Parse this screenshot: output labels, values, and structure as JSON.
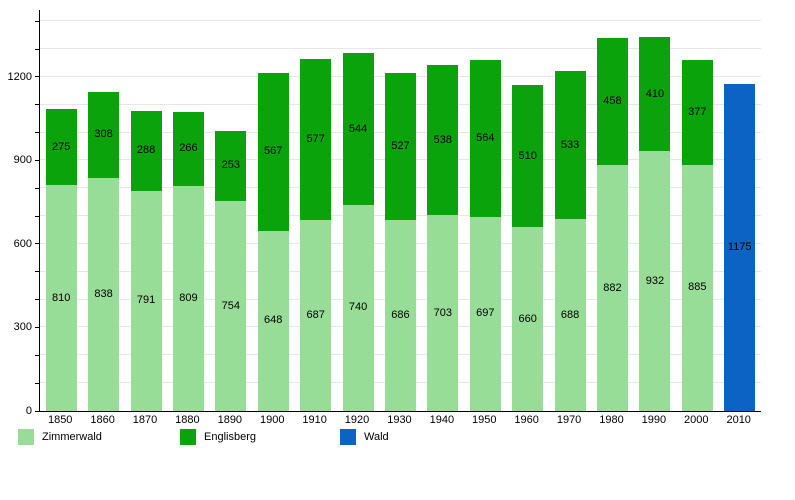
{
  "chart_data": {
    "type": "bar",
    "stacked": true,
    "title": "",
    "xlabel": "",
    "ylabel": "",
    "categories": [
      "1850",
      "1860",
      "1870",
      "1880",
      "1890",
      "1900",
      "1910",
      "1920",
      "1930",
      "1940",
      "1950",
      "1960",
      "1970",
      "1980",
      "1990",
      "2000",
      "2010"
    ],
    "series": [
      {
        "name": "Zimmerwald",
        "color": "#97DC97",
        "values": [
          810,
          838,
          791,
          809,
          754,
          648,
          687,
          740,
          686,
          703,
          697,
          660,
          688,
          882,
          932,
          885,
          null
        ]
      },
      {
        "name": "Englisberg",
        "color": "#0BA30B",
        "values": [
          275,
          308,
          288,
          266,
          253,
          567,
          577,
          544,
          527,
          538,
          564,
          510,
          533,
          458,
          410,
          377,
          null
        ]
      },
      {
        "name": "Wald",
        "color": "#0D63C3",
        "values": [
          null,
          null,
          null,
          null,
          null,
          null,
          null,
          null,
          null,
          null,
          null,
          null,
          null,
          null,
          null,
          null,
          1175
        ]
      }
    ],
    "totals": [
      1085,
      1146,
      1079,
      1075,
      1007,
      1215,
      1264,
      1284,
      1213,
      1241,
      1261,
      1170,
      1221,
      1340,
      1342,
      1262,
      1175
    ],
    "ymax": 1440,
    "ytick_step": 100,
    "yticks_labeled": [
      0,
      300,
      600,
      900,
      1200
    ],
    "grid": true,
    "gridline_color": "#E7E7E7",
    "axis_color": "#000000",
    "value_label_color": "#000000",
    "legend_position": "bottom"
  }
}
